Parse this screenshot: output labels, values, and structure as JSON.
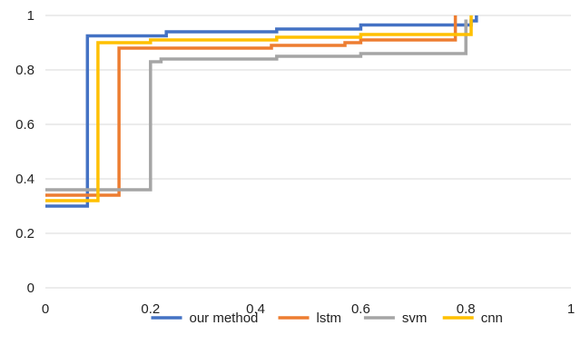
{
  "chart_data": {
    "type": "line",
    "step": true,
    "title": "",
    "xlabel": "",
    "ylabel": "",
    "xlim": [
      0,
      1
    ],
    "ylim": [
      0,
      1
    ],
    "x_ticks": [
      "0",
      "0.2",
      "0.4",
      "0.6",
      "0.8",
      "1"
    ],
    "y_ticks": [
      "0",
      "0.2",
      "0.4",
      "0.6",
      "0.8",
      "1"
    ],
    "grid": "horizontal-only",
    "legend_position": "bottom",
    "series": [
      {
        "name": "our method",
        "color": "#4472c4",
        "x": [
          0,
          0.08,
          0.08,
          0.23,
          0.23,
          0.44,
          0.44,
          0.6,
          0.6,
          0.81,
          0.81,
          0.82,
          0.82
        ],
        "y": [
          0.3,
          0.3,
          0.925,
          0.925,
          0.94,
          0.94,
          0.95,
          0.95,
          0.965,
          0.965,
          0.98,
          0.98,
          1.0
        ]
      },
      {
        "name": "lstm",
        "color": "#ed7d31",
        "x": [
          0,
          0.14,
          0.14,
          0.43,
          0.43,
          0.57,
          0.57,
          0.6,
          0.6,
          0.78,
          0.78
        ],
        "y": [
          0.34,
          0.34,
          0.88,
          0.88,
          0.89,
          0.89,
          0.9,
          0.9,
          0.91,
          0.91,
          1.0
        ]
      },
      {
        "name": "svm",
        "color": "#a5a5a5",
        "x": [
          0,
          0.2,
          0.2,
          0.22,
          0.22,
          0.44,
          0.44,
          0.6,
          0.6,
          0.8,
          0.8
        ],
        "y": [
          0.36,
          0.36,
          0.83,
          0.83,
          0.84,
          0.84,
          0.85,
          0.85,
          0.86,
          0.86,
          0.985
        ]
      },
      {
        "name": "cnn",
        "color": "#ffc000",
        "x": [
          0,
          0.1,
          0.1,
          0.2,
          0.2,
          0.44,
          0.44,
          0.6,
          0.6,
          0.81,
          0.81
        ],
        "y": [
          0.32,
          0.32,
          0.9,
          0.9,
          0.91,
          0.91,
          0.92,
          0.92,
          0.93,
          0.93,
          1.0
        ]
      }
    ]
  },
  "colors": {
    "gridline": "#d9d9d9",
    "axis_text": "#222222"
  }
}
